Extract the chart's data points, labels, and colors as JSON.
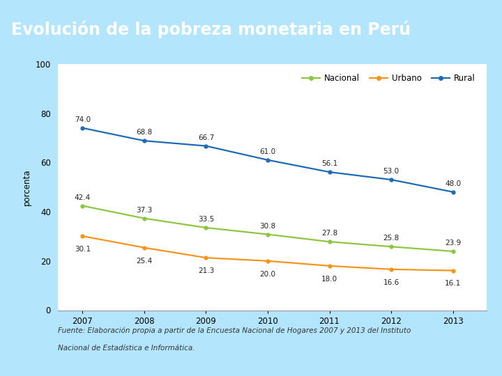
{
  "title": "Evolución de la pobreza monetaria en Perú",
  "title_bg_color": "#29B6F6",
  "title_text_color": "#FFFFFF",
  "fig_bg_color": "#B3E5FC",
  "plot_bg_color": "#FFFFFF",
  "years": [
    2007,
    2008,
    2009,
    2010,
    2011,
    2012,
    2013
  ],
  "rural": [
    74.0,
    68.8,
    66.7,
    61.0,
    56.1,
    53.0,
    48.0
  ],
  "nacional": [
    42.4,
    37.3,
    33.5,
    30.8,
    27.8,
    25.8,
    23.9
  ],
  "urbano": [
    30.1,
    25.4,
    21.3,
    20.0,
    18.0,
    16.6,
    16.1
  ],
  "rural_color": "#1E6BB5",
  "nacional_color": "#8DC63F",
  "urbano_color": "#F7941D",
  "ylabel": "porcenta",
  "ylim": [
    0,
    100
  ],
  "yticks": [
    0,
    20,
    40,
    60,
    80,
    100
  ],
  "footnote_line1": "Fuente: Elaboración propia a partir de la Encuesta Nacional de Hogares 2007 y 2013 del Instituto",
  "footnote_line2": "Nacional de Estadística e Informática.",
  "label_fontsize": 7.5,
  "axis_fontsize": 8.5,
  "legend_fontsize": 8.5
}
